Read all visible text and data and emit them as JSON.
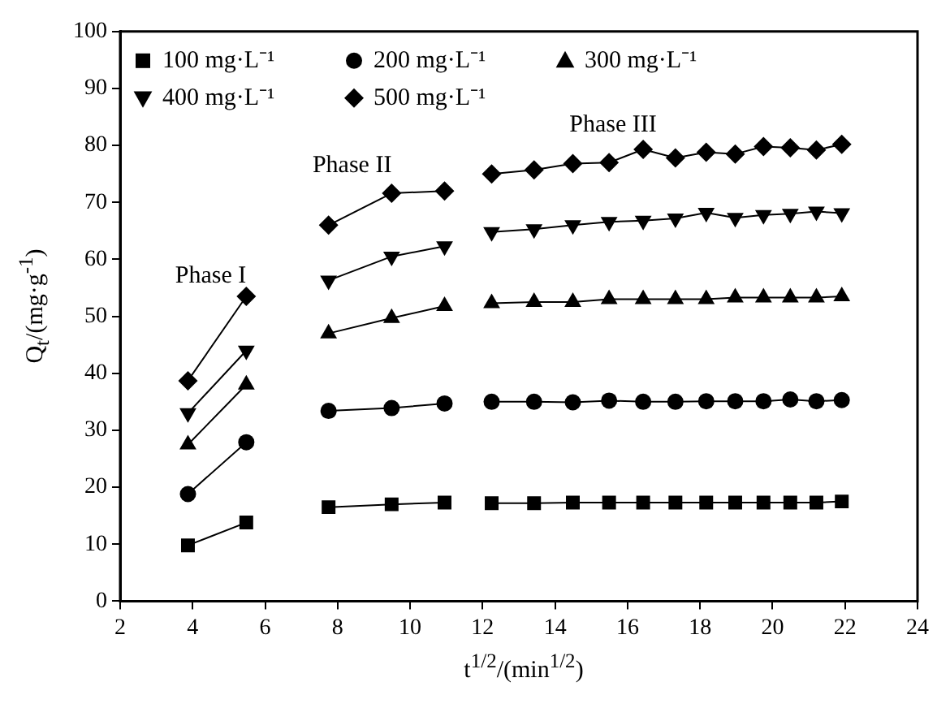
{
  "chart_data": {
    "type": "line",
    "xlabel": "t$^{1/2}$/(min$^{1/2}$)",
    "ylabel": "Q$_{t}$/(mg·g$^{-1}$)",
    "x": [
      3.87,
      5.48,
      6.6,
      7.75,
      9.49,
      10.95,
      11.6,
      12.25,
      13.42,
      14.49,
      15.49,
      16.43,
      17.32,
      18.17,
      18.97,
      19.75,
      20.49,
      21.21,
      21.91
    ],
    "series": [
      {
        "name": "100 mg·L⁻¹",
        "color": "#000000",
        "marker": "square",
        "values": [
          9.8,
          13.8,
          null,
          16.5,
          17.0,
          17.3,
          null,
          17.2,
          17.2,
          17.3,
          17.3,
          17.3,
          17.3,
          17.3,
          17.3,
          17.3,
          17.3,
          17.3,
          17.5
        ]
      },
      {
        "name": "200 mg·L⁻¹",
        "color": "#000000",
        "marker": "circle",
        "values": [
          18.8,
          27.9,
          null,
          33.4,
          33.9,
          34.7,
          null,
          35.0,
          35.0,
          34.9,
          35.2,
          35.0,
          35.0,
          35.1,
          35.1,
          35.1,
          35.4,
          35.1,
          35.3
        ]
      },
      {
        "name": "300 mg·L⁻¹",
        "color": "#000000",
        "marker": "triangle",
        "values": [
          27.5,
          38.0,
          null,
          47.0,
          49.7,
          51.8,
          null,
          52.3,
          52.5,
          52.5,
          53.0,
          53.0,
          53.0,
          53.0,
          53.3,
          53.3,
          53.3,
          53.3,
          53.5
        ]
      },
      {
        "name": "400 mg·L⁻¹",
        "color": "#000000",
        "marker": "triangle-down",
        "values": [
          33.0,
          44.0,
          null,
          56.3,
          60.5,
          62.3,
          null,
          64.8,
          65.3,
          66.0,
          66.6,
          66.8,
          67.2,
          68.2,
          67.3,
          67.8,
          68.0,
          68.4,
          68.1
        ]
      },
      {
        "name": "500 mg·L⁻¹",
        "color": "#000000",
        "marker": "diamond",
        "values": [
          38.7,
          53.5,
          null,
          66.0,
          71.6,
          72.0,
          null,
          75.0,
          75.7,
          76.8,
          77.0,
          79.3,
          77.8,
          78.8,
          78.5,
          79.8,
          79.6,
          79.2,
          80.2
        ]
      }
    ],
    "xlim": [
      2,
      24
    ],
    "xticks": [
      2,
      4,
      6,
      8,
      10,
      12,
      14,
      16,
      18,
      20,
      22,
      24
    ],
    "ylim": [
      0,
      100
    ],
    "yticks": [
      0,
      10,
      20,
      30,
      40,
      50,
      60,
      70,
      80,
      90,
      100
    ],
    "grid": false,
    "legend": "top left",
    "line_style": "solid",
    "annotations": [
      "Phase I",
      "Phase II",
      "Phase III"
    ]
  }
}
